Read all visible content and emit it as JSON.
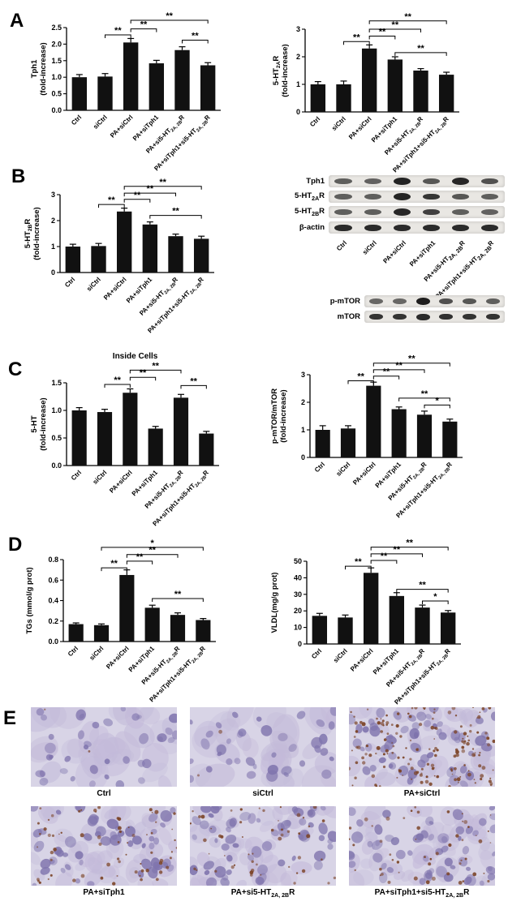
{
  "panel_letters": [
    "A",
    "B",
    "C",
    "D",
    "E"
  ],
  "categories": [
    "Ctrl",
    "siCtrl",
    "PA+siCtrl",
    "PA+siTph1",
    "PA+si5-HT_{2A, 2B}R",
    "PA+siTph1+si5-HT_{2A, 2B}R"
  ],
  "chart_data": [
    {
      "id": "tph1",
      "panel": "A",
      "type": "bar",
      "title": "",
      "ylabel": "Tph1\n(fold-increase)",
      "xlabel": "",
      "ylim": [
        0,
        2.5
      ],
      "yticks": [
        0,
        0.5,
        1,
        1.5,
        2,
        2.5
      ],
      "ytick_labels": [
        "0.0",
        "0.5",
        "1.0",
        "1.5",
        "2.0",
        "2.5"
      ],
      "categories": [
        "Ctrl",
        "siCtrl",
        "PA+siCtrl",
        "PA+siTph1",
        "PA+si5-HT_{2A, 2B}R",
        "PA+siTph1+si5-HT_{2A, 2B}R"
      ],
      "values": [
        1.0,
        1.02,
        2.05,
        1.42,
        1.82,
        1.36
      ],
      "errors": [
        0.08,
        0.09,
        0.12,
        0.09,
        0.1,
        0.08
      ],
      "bar_color": "#111111",
      "grid": false,
      "legend": "none",
      "brackets": [
        {
          "from": 1,
          "to": 2,
          "label": "**",
          "y": 2.28
        },
        {
          "from": 2,
          "to": 3,
          "label": "**",
          "y": 2.46
        },
        {
          "from": 4,
          "to": 5,
          "label": "**",
          "y": 2.12
        },
        {
          "from": 2,
          "to": 5,
          "label": "**",
          "y": 2.72
        }
      ]
    },
    {
      "id": "5ht2ar",
      "panel": "A",
      "type": "bar",
      "title": "",
      "ylabel": "5-HT_{2A}R\n(fold-increase)",
      "xlabel": "",
      "ylim": [
        0,
        3
      ],
      "yticks": [
        0,
        1,
        2,
        3
      ],
      "ytick_labels": [
        "0",
        "1",
        "2",
        "3"
      ],
      "categories": [
        "Ctrl",
        "siCtrl",
        "PA+siCtrl",
        "PA+siTph1",
        "PA+si5-HT_{2A, 2B}R",
        "PA+siTph1+si5-HT_{2A, 2B}R"
      ],
      "values": [
        1.0,
        1.0,
        2.3,
        1.9,
        1.5,
        1.35
      ],
      "errors": [
        0.1,
        0.12,
        0.13,
        0.1,
        0.07,
        0.09
      ],
      "bar_color": "#111111",
      "grid": false,
      "legend": "none",
      "brackets": [
        {
          "from": 1,
          "to": 2,
          "label": "**",
          "y": 2.55
        },
        {
          "from": 2,
          "to": 3,
          "label": "**",
          "y": 2.75
        },
        {
          "from": 3,
          "to": 5,
          "label": "**",
          "y": 2.15
        },
        {
          "from": 2,
          "to": 4,
          "label": "**",
          "y": 3.0
        },
        {
          "from": 2,
          "to": 5,
          "label": "**",
          "y": 3.3
        }
      ]
    },
    {
      "id": "5ht2br",
      "panel": "B",
      "type": "bar",
      "title": "",
      "ylabel": "5-HT_{2B}R\n(fold-increase)",
      "xlabel": "",
      "ylim": [
        0,
        3
      ],
      "yticks": [
        0,
        1,
        2,
        3
      ],
      "ytick_labels": [
        "0",
        "1",
        "2",
        "3"
      ],
      "categories": [
        "Ctrl",
        "siCtrl",
        "PA+siCtrl",
        "PA+siTph1",
        "PA+si5-HT_{2A, 2B}R",
        "PA+siTph1+si5-HT_{2A, 2B}R"
      ],
      "values": [
        1.0,
        1.02,
        2.35,
        1.85,
        1.4,
        1.3
      ],
      "errors": [
        0.09,
        0.1,
        0.13,
        0.1,
        0.08,
        0.1
      ],
      "bar_color": "#111111",
      "grid": false,
      "legend": "none",
      "brackets": [
        {
          "from": 1,
          "to": 2,
          "label": "**",
          "y": 2.62
        },
        {
          "from": 2,
          "to": 3,
          "label": "**",
          "y": 2.82
        },
        {
          "from": 2,
          "to": 4,
          "label": "**",
          "y": 3.06
        },
        {
          "from": 2,
          "to": 5,
          "label": "**",
          "y": 3.32
        },
        {
          "from": 3,
          "to": 5,
          "label": "**",
          "y": 2.2
        }
      ]
    },
    {
      "id": "5ht-inside-cells",
      "panel": "C",
      "type": "bar",
      "title": "Inside Cells",
      "ylabel": "5-HT\n(fold-increase)",
      "xlabel": "",
      "ylim": [
        0,
        1.5
      ],
      "yticks": [
        0,
        0.5,
        1,
        1.5
      ],
      "ytick_labels": [
        "0.0",
        "0.5",
        "1.0",
        "1.5"
      ],
      "categories": [
        "Ctrl",
        "siCtrl",
        "PA+siCtrl",
        "PA+siTph1",
        "PA+si5-HT_{2A, 2B}R",
        "PA+siTph1+si5-HT_{2A, 2B}R"
      ],
      "values": [
        1.0,
        0.97,
        1.32,
        0.67,
        1.23,
        0.58
      ],
      "errors": [
        0.05,
        0.05,
        0.07,
        0.04,
        0.06,
        0.04
      ],
      "bar_color": "#111111",
      "grid": false,
      "legend": "none",
      "brackets": [
        {
          "from": 1,
          "to": 2,
          "label": "**",
          "y": 1.47
        },
        {
          "from": 2,
          "to": 3,
          "label": "**",
          "y": 1.6
        },
        {
          "from": 2,
          "to": 4,
          "label": "**",
          "y": 1.73
        },
        {
          "from": 4,
          "to": 5,
          "label": "**",
          "y": 1.45
        }
      ]
    },
    {
      "id": "pmtor-mtor",
      "panel": "C",
      "type": "bar",
      "title": "",
      "ylabel": "p-mTOR/mTOR\n(fold-increase)",
      "xlabel": "",
      "ylim": [
        0,
        3
      ],
      "yticks": [
        0,
        1,
        2,
        3
      ],
      "ytick_labels": [
        "0",
        "1",
        "2",
        "3"
      ],
      "categories": [
        "Ctrl",
        "siCtrl",
        "PA+siCtrl",
        "PA+siTph1",
        "PA+si5-HT_{2A, 2B}R",
        "PA+siTph1+si5-HT_{2A, 2B}R"
      ],
      "values": [
        1.0,
        1.05,
        2.6,
        1.75,
        1.55,
        1.3
      ],
      "errors": [
        0.15,
        0.1,
        0.13,
        0.08,
        0.13,
        0.09
      ],
      "bar_color": "#111111",
      "grid": false,
      "legend": "none",
      "brackets": [
        {
          "from": 1,
          "to": 2,
          "label": "**",
          "y": 2.78
        },
        {
          "from": 2,
          "to": 3,
          "label": "**",
          "y": 2.95
        },
        {
          "from": 2,
          "to": 4,
          "label": "**",
          "y": 3.18
        },
        {
          "from": 2,
          "to": 5,
          "label": "**",
          "y": 3.42
        },
        {
          "from": 3,
          "to": 5,
          "label": "**",
          "y": 2.15
        },
        {
          "from": 4,
          "to": 5,
          "label": "*",
          "y": 1.9
        }
      ]
    },
    {
      "id": "tgs",
      "panel": "D",
      "type": "bar",
      "title": "",
      "ylabel": "TGs (mmol/g prot)",
      "xlabel": "",
      "ylim": [
        0,
        0.8
      ],
      "yticks": [
        0,
        0.2,
        0.4,
        0.6,
        0.8
      ],
      "ytick_labels": [
        "0.0",
        "0.2",
        "0.4",
        "0.6",
        "0.8"
      ],
      "categories": [
        "Ctrl",
        "siCtrl",
        "PA+siCtrl",
        "PA+siTph1",
        "PA+si5-HT_{2A, 2B}R",
        "PA+siTph1+si5-HT_{2A, 2B}R"
      ],
      "values": [
        0.17,
        0.16,
        0.65,
        0.33,
        0.26,
        0.21
      ],
      "errors": [
        0.012,
        0.012,
        0.05,
        0.025,
        0.02,
        0.015
      ],
      "bar_color": "#111111",
      "grid": false,
      "legend": "none",
      "brackets": [
        {
          "from": 1,
          "to": 2,
          "label": "**",
          "y": 0.72
        },
        {
          "from": 2,
          "to": 3,
          "label": "**",
          "y": 0.785
        },
        {
          "from": 2,
          "to": 4,
          "label": "**",
          "y": 0.85
        },
        {
          "from": 1,
          "to": 5,
          "label": "*",
          "y": 0.92
        },
        {
          "from": 3,
          "to": 5,
          "label": "**",
          "y": 0.42
        }
      ]
    },
    {
      "id": "vldl",
      "panel": "D",
      "type": "bar",
      "title": "",
      "ylabel": "VLDL(mg/g prot)",
      "xlabel": "",
      "ylim": [
        0,
        50
      ],
      "yticks": [
        0,
        10,
        20,
        30,
        40,
        50
      ],
      "ytick_labels": [
        "0",
        "10",
        "20",
        "30",
        "40",
        "50"
      ],
      "categories": [
        "Ctrl",
        "siCtrl",
        "PA+siCtrl",
        "PA+siTph1",
        "PA+si5-HT_{2A, 2B}R",
        "PA+siTph1+si5-HT_{2A, 2B}R"
      ],
      "values": [
        17,
        16,
        43,
        29,
        22,
        19
      ],
      "errors": [
        1.5,
        1.5,
        3,
        2,
        1.5,
        1.2
      ],
      "bar_color": "#111111",
      "grid": false,
      "legend": "none",
      "brackets": [
        {
          "from": 1,
          "to": 2,
          "label": "**",
          "y": 47
        },
        {
          "from": 2,
          "to": 3,
          "label": "**",
          "y": 50.5
        },
        {
          "from": 2,
          "to": 4,
          "label": "**",
          "y": 54.5
        },
        {
          "from": 2,
          "to": 5,
          "label": "**",
          "y": 58.5
        },
        {
          "from": 3,
          "to": 5,
          "label": "**",
          "y": 33
        },
        {
          "from": 4,
          "to": 5,
          "label": "*",
          "y": 26
        }
      ]
    }
  ],
  "blots": [
    {
      "id": "receptor-blot",
      "rows": [
        {
          "label": "Tph1",
          "intensities": [
            0.5,
            0.48,
            0.92,
            0.55,
            0.88,
            0.6
          ]
        },
        {
          "label": "5-HT_{2A}R",
          "intensities": [
            0.5,
            0.5,
            0.9,
            0.78,
            0.55,
            0.5
          ]
        },
        {
          "label": "5-HT_{2B}R",
          "intensities": [
            0.5,
            0.5,
            0.88,
            0.72,
            0.5,
            0.48
          ]
        },
        {
          "label": "β-actin",
          "intensities": [
            0.85,
            0.85,
            0.85,
            0.85,
            0.85,
            0.85
          ]
        }
      ],
      "lane_labels": [
        "Ctrl",
        "siCtrl",
        "PA+siCtrl",
        "PA+siTph1",
        "PA+si5-HT_{2A, 2B}R",
        "PA+siTph1+si5-HT_{2A, 2B}R"
      ]
    },
    {
      "id": "mtor-blot",
      "rows": [
        {
          "label": "p-mTOR",
          "intensities": [
            0.45,
            0.45,
            0.95,
            0.6,
            0.55,
            0.5
          ]
        },
        {
          "label": "mTOR",
          "intensities": [
            0.8,
            0.8,
            0.85,
            0.82,
            0.8,
            0.8
          ]
        }
      ],
      "lane_labels": []
    }
  ],
  "micrographs": {
    "colors": {
      "background": "#d8d4e6",
      "cell": "#c3bad9",
      "nucleus": "#7f74ad",
      "dot": "#7b4326"
    },
    "items": [
      {
        "label": "Ctrl",
        "dots": 0.01,
        "crowded": false
      },
      {
        "label": "siCtrl",
        "dots": 0.01,
        "crowded": false
      },
      {
        "label": "PA+siCtrl",
        "dots": 0.95,
        "crowded": true
      },
      {
        "label": "PA+siTph1",
        "dots": 0.4,
        "crowded": true
      },
      {
        "label": "PA+si5-HT_{2A, 2B}R",
        "dots": 0.3,
        "crowded": true
      },
      {
        "label": "PA+siTph1+si5-HT_{2A, 2B}R",
        "dots": 0.3,
        "crowded": true
      }
    ]
  }
}
